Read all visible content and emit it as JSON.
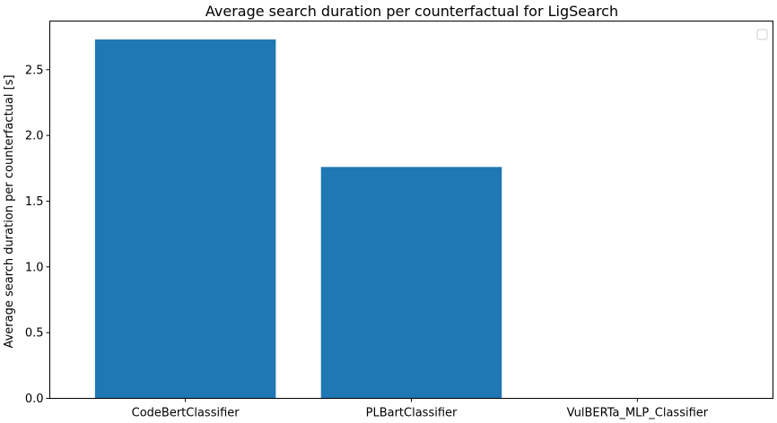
{
  "chart_data": {
    "type": "bar",
    "title": "Average search duration per counterfactual for LigSearch",
    "xlabel": "",
    "ylabel": "Average search duration per counterfactual [s]",
    "categories": [
      "CodeBertClassifier",
      "PLBartClassifier",
      "VulBERTa_MLP_Classifier"
    ],
    "values": [
      2.73,
      1.76,
      0.0
    ],
    "ylim": [
      0,
      2.87
    ],
    "yticks": [
      "0.0",
      "0.5",
      "1.0",
      "1.5",
      "2.0",
      "2.5"
    ],
    "legend": "top-right, empty",
    "grid": false,
    "bar_color": "#1f77b4"
  }
}
